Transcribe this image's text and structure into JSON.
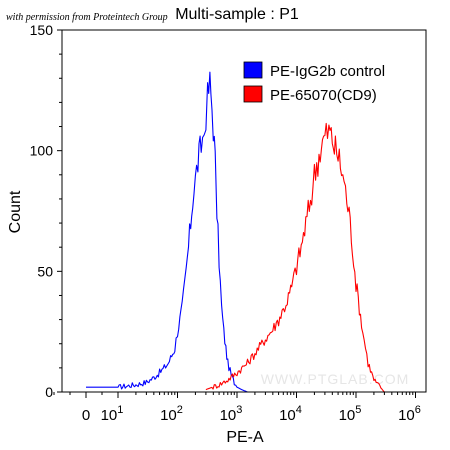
{
  "credit": "with permission from Proteintech Group",
  "watermark": "WWW.PTGLAB.COM",
  "chart_data": {
    "type": "line",
    "title": "Multi-sample : P1",
    "xlabel": "PE-A",
    "ylabel": "Count",
    "ylim": [
      0,
      150
    ],
    "yticks": [
      0,
      50,
      100,
      150
    ],
    "ytick_labels": [
      "0",
      "50",
      "100",
      "150"
    ],
    "xscale": "biexponential",
    "xticks": [
      {
        "value": 0,
        "base": "0",
        "exp": ""
      },
      {
        "value": 10,
        "base": "10",
        "exp": "1"
      },
      {
        "value": 100,
        "base": "10",
        "exp": "2"
      },
      {
        "value": 1000,
        "base": "10",
        "exp": "3"
      },
      {
        "value": 10000,
        "base": "10",
        "exp": "4"
      },
      {
        "value": 100000,
        "base": "10",
        "exp": "5"
      },
      {
        "value": 1000000,
        "base": "10",
        "exp": "6"
      }
    ],
    "legend_position": "top-right",
    "series": [
      {
        "name": "PE-IgG2b control",
        "color": "#0000ff",
        "x": [
          0,
          10,
          20,
          30,
          40,
          50,
          60,
          70,
          80,
          90,
          100,
          120,
          140,
          160,
          180,
          200,
          220,
          250,
          280,
          300,
          320,
          350,
          380,
          400,
          430,
          460,
          500,
          550,
          600,
          650,
          700,
          800,
          900,
          1000,
          1200,
          1500,
          2000
        ],
        "y": [
          2,
          2,
          3,
          4,
          6,
          8,
          10,
          12,
          15,
          18,
          25,
          35,
          50,
          65,
          80,
          88,
          95,
          102,
          108,
          115,
          122,
          128,
          118,
          110,
          95,
          75,
          55,
          35,
          25,
          18,
          12,
          7,
          4,
          2,
          1,
          0,
          0
        ]
      },
      {
        "name": "PE-65070(CD9)",
        "color": "#ff0000",
        "x": [
          300,
          500,
          700,
          1000,
          1500,
          2000,
          3000,
          4000,
          5000,
          6000,
          7000,
          8000,
          9000,
          10000,
          12000,
          15000,
          18000,
          20000,
          25000,
          30000,
          35000,
          40000,
          45000,
          50000,
          60000,
          70000,
          80000,
          100000,
          130000,
          160000,
          200000,
          300000
        ],
        "y": [
          1,
          3,
          5,
          8,
          12,
          16,
          22,
          26,
          30,
          34,
          38,
          42,
          47,
          52,
          60,
          72,
          82,
          90,
          100,
          106,
          108,
          105,
          100,
          98,
          90,
          80,
          70,
          45,
          25,
          12,
          5,
          0
        ]
      }
    ]
  }
}
